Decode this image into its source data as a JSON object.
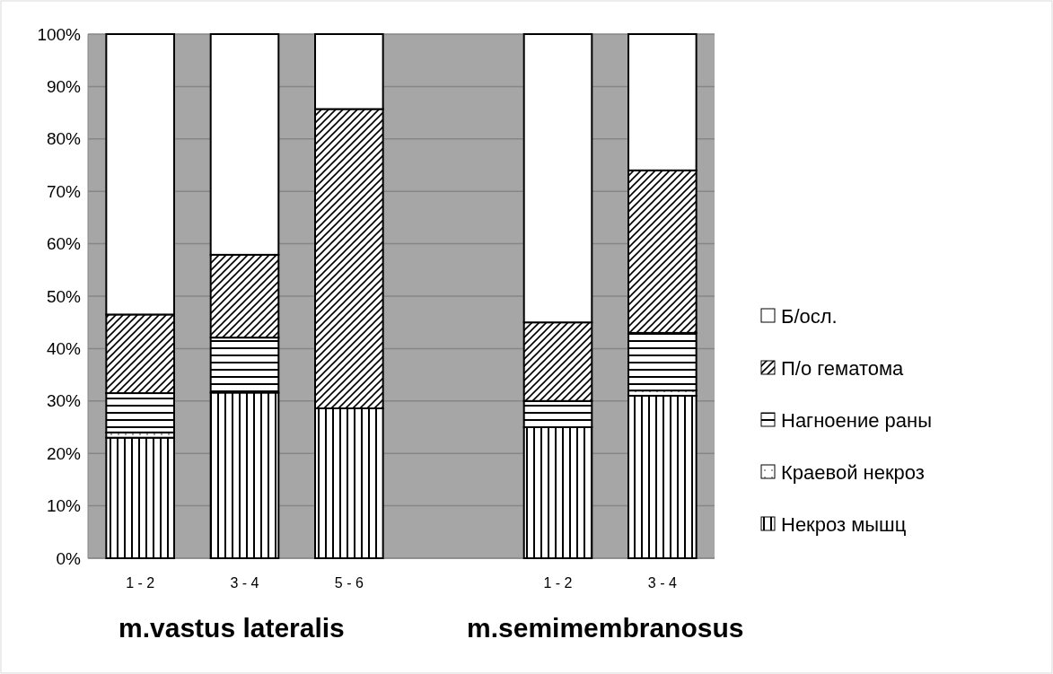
{
  "chart_data": {
    "type": "bar",
    "stacked": true,
    "categories": [
      "1 - 2",
      "3 - 4",
      "5 - 6",
      null,
      "1 - 2",
      "3 - 4"
    ],
    "series": [
      {
        "name": "Некроз мышц",
        "color": "#000000",
        "values": [
          23,
          31.6,
          28.6,
          null,
          25,
          31
        ]
      },
      {
        "name": "Краевой некроз",
        "color": "#000000",
        "values": [
          1,
          0,
          0,
          null,
          0,
          1
        ]
      },
      {
        "name": "Нагноение раны",
        "color": "#000000",
        "values": [
          7.5,
          10.5,
          0,
          null,
          5,
          11
        ]
      },
      {
        "name": "П/о гематома",
        "color": "#000000",
        "values": [
          15,
          15.8,
          57.1,
          null,
          15,
          31
        ]
      },
      {
        "name": "Б/осл.",
        "color": "#000000",
        "values": [
          53.5,
          42.1,
          14.3,
          null,
          55,
          26
        ]
      }
    ],
    "ylim": [
      0,
      100
    ],
    "yticks": [
      {
        "value": 0,
        "label": "0%"
      },
      {
        "value": 10,
        "label": "10%"
      },
      {
        "value": 20,
        "label": "20%"
      },
      {
        "value": 30,
        "label": "30%"
      },
      {
        "value": 40,
        "label": "40%"
      },
      {
        "value": 50,
        "label": "50%"
      },
      {
        "value": 60,
        "label": "60%"
      },
      {
        "value": 70,
        "label": "70%"
      },
      {
        "value": 80,
        "label": "80%"
      },
      {
        "value": 90,
        "label": "90%"
      },
      {
        "value": 100,
        "label": "100%"
      }
    ],
    "grid": "y",
    "legend": "right",
    "annotations": [
      "m.vastus lateralis",
      "m.semimembranosus"
    ]
  }
}
